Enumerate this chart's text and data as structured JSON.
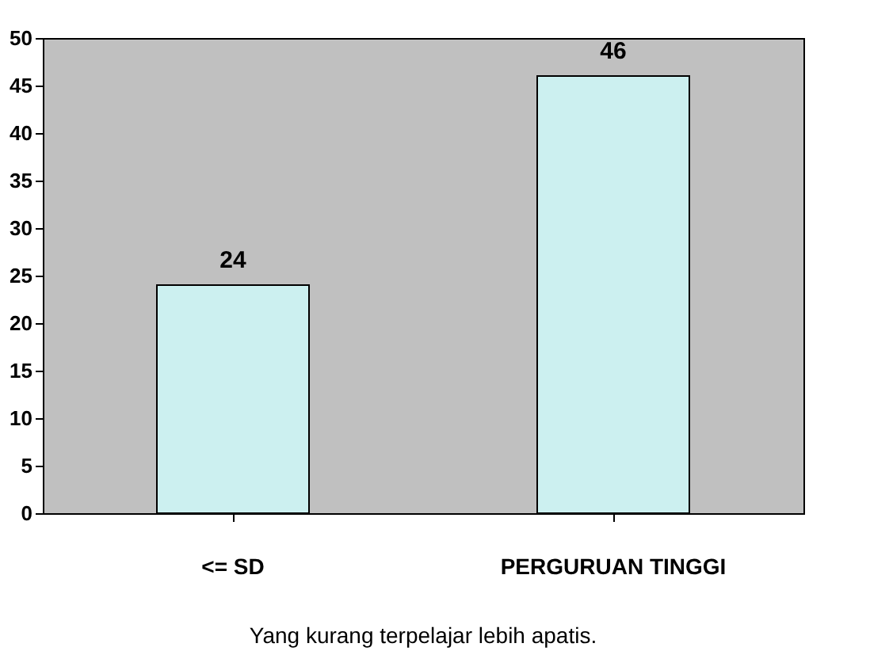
{
  "chart_data": {
    "type": "bar",
    "categories": [
      "<= SD",
      "PERGURUAN TINGGI"
    ],
    "values": [
      24,
      46
    ],
    "color": "#ccf0f0",
    "ylim": [
      0,
      50
    ],
    "yticks": [
      0,
      5,
      10,
      15,
      20,
      25,
      30,
      35,
      40,
      45,
      50
    ],
    "data_labels": true,
    "annotations": [
      "Yang kurang terpelajar lebih apatis."
    ]
  }
}
